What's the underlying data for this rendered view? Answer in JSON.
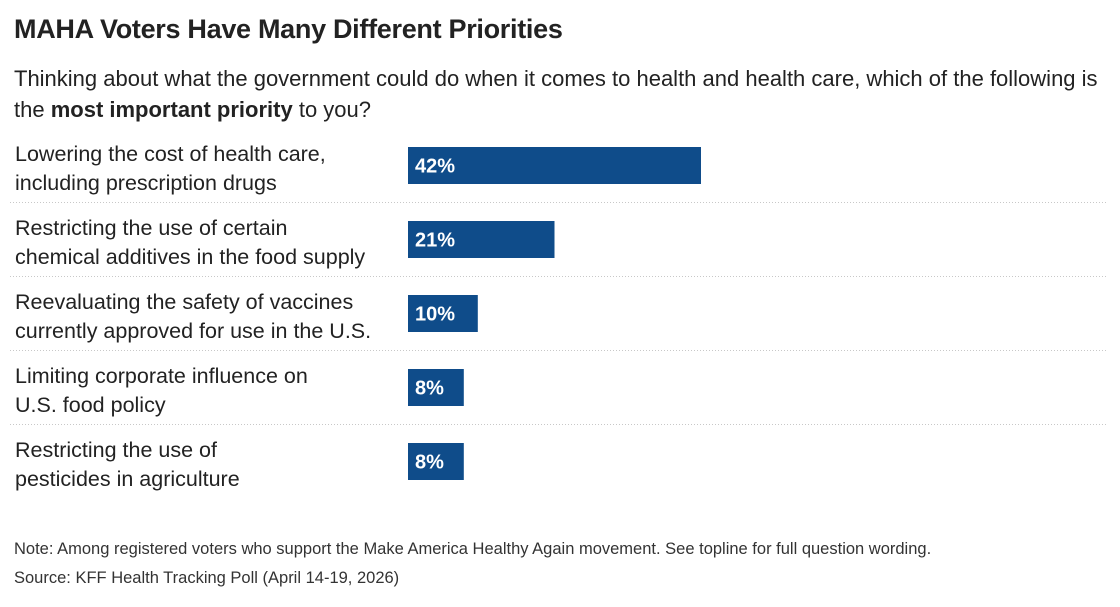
{
  "title": "MAHA Voters Have Many Different Priorities",
  "subtitle": {
    "before": "Thinking about what the government could do when it comes to health and health care, which of the following is the ",
    "bold": "most important priority",
    "after": " to you?"
  },
  "note": "Note: Among registered voters who support the Make America Healthy Again movement. See topline for full question wording.",
  "source": "Source: KFF Health Tracking Poll (April 14-19, 2026)",
  "colors": {
    "bar": "#0f4c8a",
    "bar_label": "#ffffff",
    "divider": "#c8c8c8"
  },
  "chart_data": {
    "type": "bar",
    "orientation": "horizontal",
    "categories": [
      [
        "Lowering the cost of health care,",
        "including prescription drugs"
      ],
      [
        "Restricting the use of certain",
        "chemical additives in the food supply"
      ],
      [
        "Reevaluating the safety of vaccines",
        "currently approved for use in the U.S."
      ],
      [
        "Limiting corporate influence on",
        "U.S. food policy"
      ],
      [
        "Restricting the use of",
        "pesticides in agriculture"
      ]
    ],
    "values": [
      42,
      21,
      10,
      8,
      8
    ],
    "value_labels": [
      "42%",
      "21%",
      "10%",
      "8%",
      "8%"
    ],
    "unit": "%",
    "xlim": [
      0,
      100
    ],
    "grid": false,
    "legend": "none"
  }
}
